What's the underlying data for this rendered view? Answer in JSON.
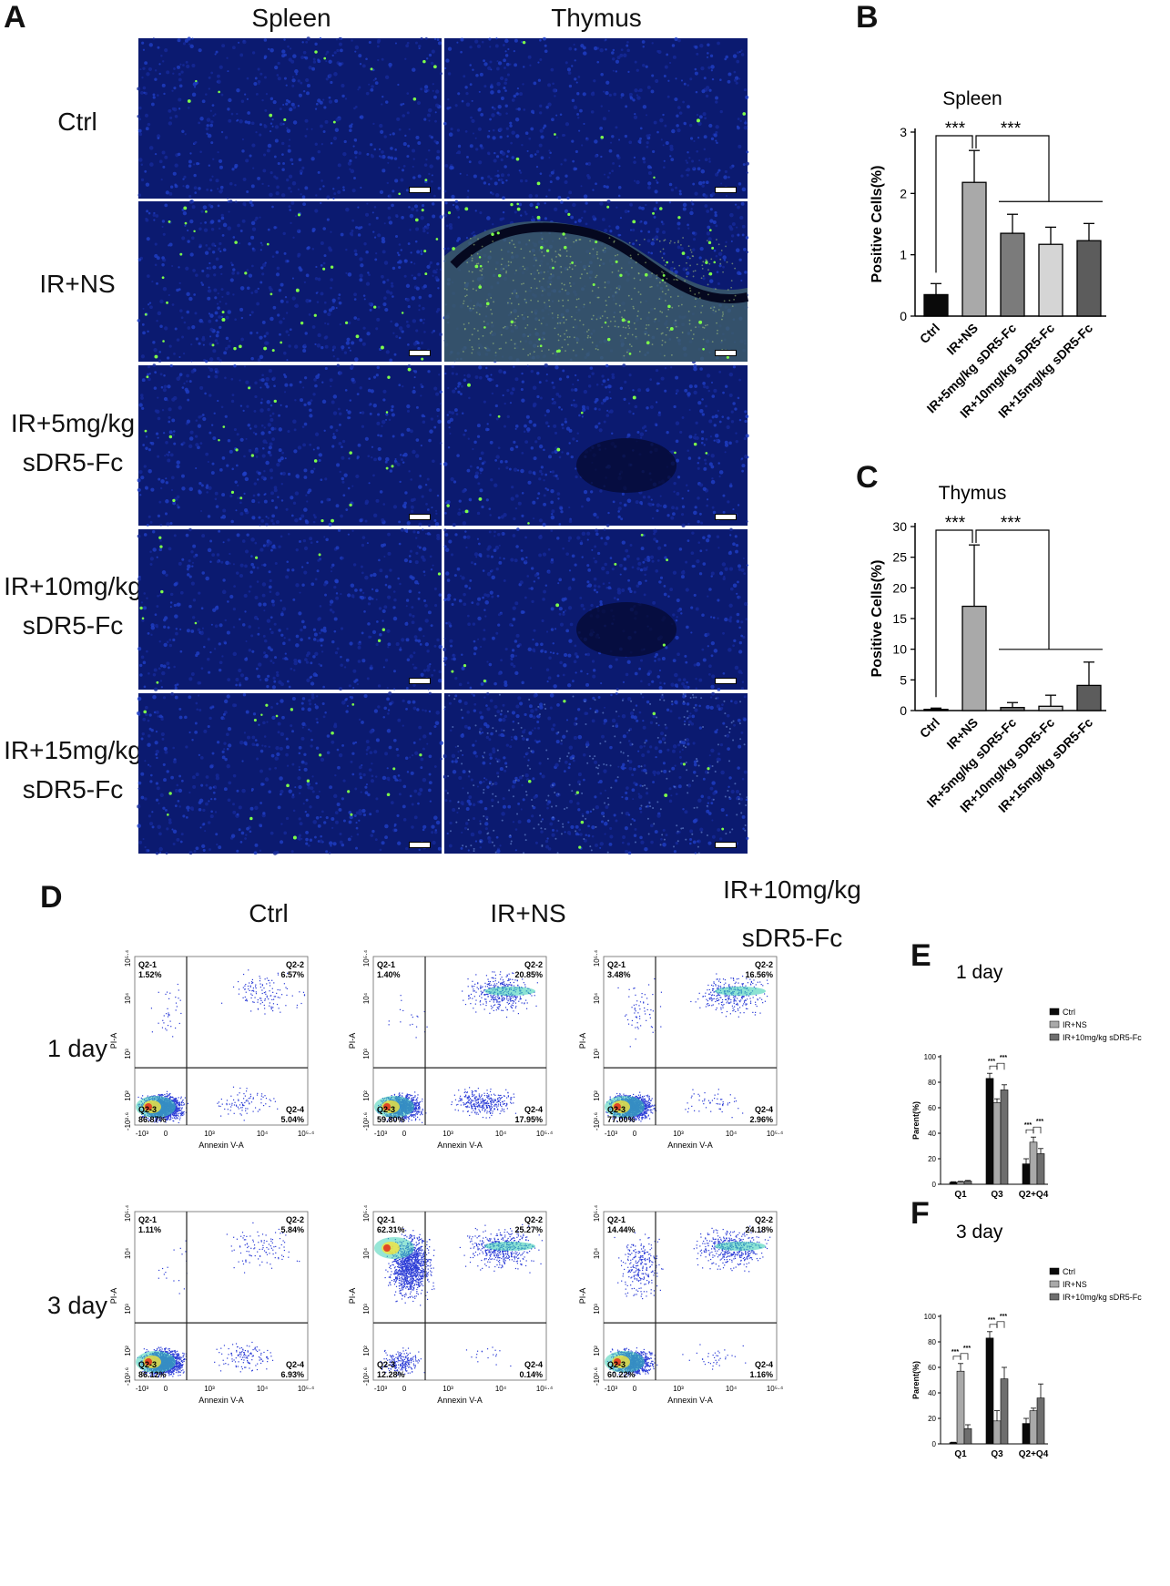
{
  "panels": {
    "A": "A",
    "B": "B",
    "C": "C",
    "D": "D",
    "E": "E",
    "F": "F"
  },
  "panelA": {
    "columns": [
      "Spleen",
      "Thymus"
    ],
    "rows": [
      [
        "Ctrl"
      ],
      [
        "IR+NS"
      ],
      [
        "IR+5mg/kg",
        "sDR5-Fc"
      ],
      [
        "IR+10mg/kg",
        "sDR5-Fc"
      ],
      [
        "IR+15mg/kg",
        "sDR5-Fc"
      ]
    ]
  },
  "chart_data": [
    {
      "panel": "B",
      "type": "bar",
      "title": "Spleen",
      "ylabel": "Positive Cells(%)",
      "categories": [
        "Ctrl",
        "IR+NS",
        "IR+5mg/kg sDR5-Fc",
        "IR+10mg/kg sDR5-Fc",
        "IR+15mg/kg sDR5-Fc"
      ],
      "values": [
        0.35,
        2.18,
        1.35,
        1.17,
        1.23
      ],
      "errors": [
        0.18,
        0.52,
        0.31,
        0.28,
        0.28
      ],
      "colors": [
        "#0a0a0a",
        "#a9a9a9",
        "#7b7b7b",
        "#d5d5d5",
        "#5c5c5c"
      ],
      "ylim": [
        0,
        3
      ],
      "yticks": [
        "0",
        "1",
        "2",
        "3"
      ],
      "annotations": [
        "***",
        "***"
      ]
    },
    {
      "panel": "C",
      "type": "bar",
      "title": "Thymus",
      "ylabel": "Positive Cells(%)",
      "categories": [
        "Ctrl",
        "IR+NS",
        "IR+5mg/kg sDR5-Fc",
        "IR+10mg/kg sDR5-Fc",
        "IR+15mg/kg sDR5-Fc"
      ],
      "values": [
        0.2,
        17.0,
        0.5,
        0.7,
        4.1
      ],
      "errors": [
        0.2,
        10.0,
        0.8,
        1.8,
        3.8
      ],
      "colors": [
        "#0a0a0a",
        "#a9a9a9",
        "#7b7b7b",
        "#d5d5d5",
        "#5c5c5c"
      ],
      "ylim": [
        0,
        30
      ],
      "yticks": [
        "0",
        "5",
        "10",
        "15",
        "20",
        "25",
        "30"
      ],
      "annotations": [
        "***",
        "***"
      ]
    },
    {
      "panel": "E",
      "type": "bar",
      "title": "1 day",
      "ylabel": "Parent(%)",
      "categories": [
        "Q1",
        "Q3",
        "Q2+Q4"
      ],
      "series": [
        {
          "name": "Ctrl",
          "values": [
            1.5,
            83,
            16
          ],
          "errors": [
            0.5,
            4,
            4
          ],
          "color": "#0a0a0a"
        },
        {
          "name": "IR+NS",
          "values": [
            1.8,
            64,
            33
          ],
          "errors": [
            0.5,
            3,
            4
          ],
          "color": "#a9a9a9"
        },
        {
          "name": "IR+10mg/kg sDR5-Fc",
          "values": [
            2.5,
            74,
            24
          ],
          "errors": [
            0.5,
            4,
            4
          ],
          "color": "#6e6e6e"
        }
      ],
      "ylim": [
        0,
        100
      ],
      "yticks": [
        "0",
        "20",
        "40",
        "60",
        "80",
        "100"
      ],
      "annotations": [
        "***",
        "***",
        "***",
        "***"
      ]
    },
    {
      "panel": "F",
      "type": "bar",
      "title": "3 day",
      "ylabel": "Parent(%)",
      "categories": [
        "Q1",
        "Q3",
        "Q2+Q4"
      ],
      "series": [
        {
          "name": "Ctrl",
          "values": [
            1,
            83,
            16
          ],
          "errors": [
            0.3,
            5,
            4
          ],
          "color": "#0a0a0a"
        },
        {
          "name": "IR+NS",
          "values": [
            57,
            18,
            26
          ],
          "errors": [
            6,
            8,
            2
          ],
          "color": "#a9a9a9"
        },
        {
          "name": "IR+10mg/kg sDR5-Fc",
          "values": [
            12,
            51,
            36
          ],
          "errors": [
            3,
            9,
            11
          ],
          "color": "#6e6e6e"
        }
      ],
      "ylim": [
        0,
        100
      ],
      "yticks": [
        "0",
        "20",
        "40",
        "60",
        "80",
        "100"
      ],
      "annotations": [
        "***",
        "***",
        "***",
        "***"
      ]
    }
  ],
  "panelD": {
    "conditions": [
      "Ctrl",
      "IR+NS",
      "IR+10mg/kg",
      "sDR5-Fc"
    ],
    "days": [
      "1 day",
      "3 day"
    ],
    "xlabel": "Annexin V-A",
    "ylabel": "PI-A",
    "xticks": [
      "-10³",
      "0",
      "10³",
      "10⁴",
      "10⁵·⁴"
    ],
    "yticks": [
      "-10²·⁶",
      "10²",
      "10³",
      "10⁴",
      "10⁵·⁴"
    ],
    "plots": [
      {
        "q1": "Q2-1",
        "q1v": "1.52%",
        "q2": "Q2-2",
        "q2v": "6.57%",
        "q3": "Q2-3",
        "q3v": "86.87%",
        "q4": "Q2-4",
        "q4v": "5.04%"
      },
      {
        "q1": "Q2-1",
        "q1v": "1.40%",
        "q2": "Q2-2",
        "q2v": "20.85%",
        "q3": "Q2-3",
        "q3v": "59.80%",
        "q4": "Q2-4",
        "q4v": "17.95%"
      },
      {
        "q1": "Q2-1",
        "q1v": "3.48%",
        "q2": "Q2-2",
        "q2v": "16.56%",
        "q3": "Q2-3",
        "q3v": "77.00%",
        "q4": "Q2-4",
        "q4v": "2.96%"
      },
      {
        "q1": "Q2-1",
        "q1v": "1.11%",
        "q2": "Q2-2",
        "q2v": "5.84%",
        "q3": "Q2-3",
        "q3v": "86.12%",
        "q4": "Q2-4",
        "q4v": "6.93%"
      },
      {
        "q1": "Q2-1",
        "q1v": "62.31%",
        "q2": "Q2-2",
        "q2v": "25.27%",
        "q3": "Q2-3",
        "q3v": "12.28%",
        "q4": "Q2-4",
        "q4v": "0.14%"
      },
      {
        "q1": "Q2-1",
        "q1v": "14.44%",
        "q2": "Q2-2",
        "q2v": "24.18%",
        "q3": "Q2-3",
        "q3v": "60.22%",
        "q4": "Q2-4",
        "q4v": "1.16%"
      }
    ]
  }
}
